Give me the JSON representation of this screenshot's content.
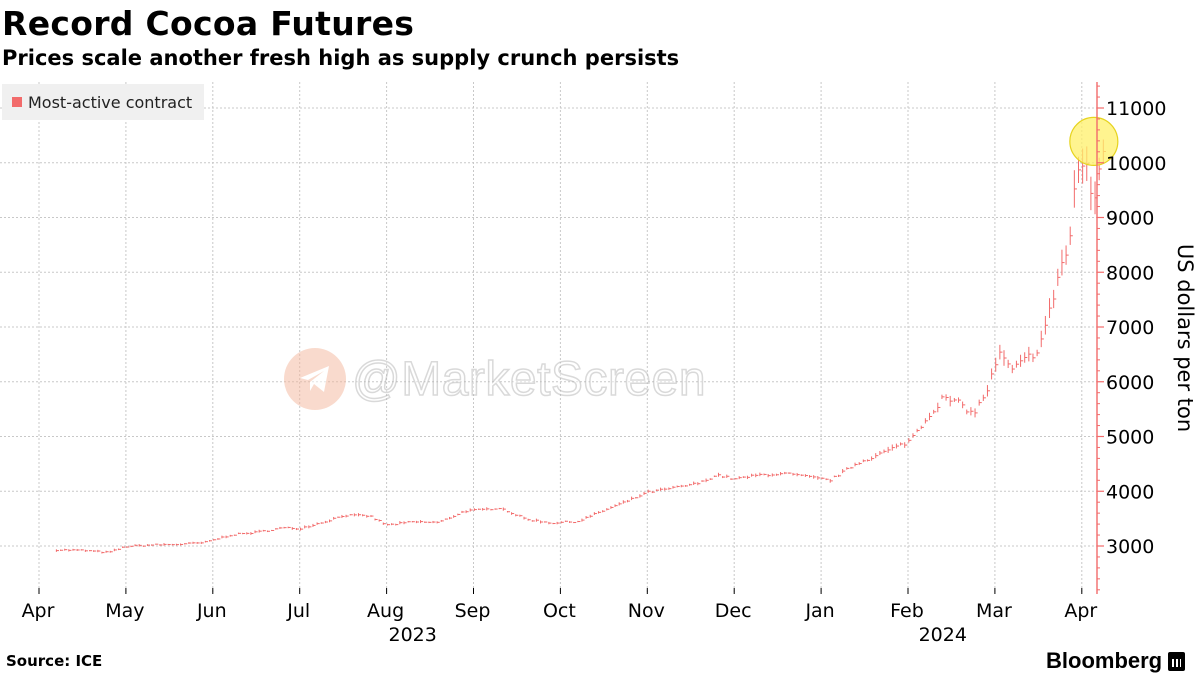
{
  "colors": {
    "series": "#f26b6b",
    "highlight": "#fff06a",
    "grid": "#c8c8c8"
  },
  "header": {
    "title": "Record Cocoa Futures",
    "subtitle": "Prices scale another fresh high as supply crunch persists"
  },
  "legend": {
    "label": "Most-active contract"
  },
  "watermark": {
    "text": "@MarketScreen",
    "icon": "telegram-plane-icon"
  },
  "footer": {
    "source": "Source: ICE",
    "brand": "Bloomberg",
    "brand_icon": "bloomberg-chart-icon"
  },
  "chart_data": {
    "type": "line",
    "style": "daily high-low bars",
    "title": "Record Cocoa Futures",
    "subtitle": "Prices scale another fresh high as supply crunch persists",
    "ylabel": "US dollars per ton",
    "xlabel": "",
    "ylim": [
      2000,
      11500
    ],
    "yticks": [
      3000,
      4000,
      5000,
      6000,
      7000,
      8000,
      9000,
      10000,
      11000
    ],
    "y_axis_side": "right",
    "grid": true,
    "legend_position": "top-left",
    "x_start_month": 3.2,
    "x_end_month": 15.25,
    "month_ticks": [
      {
        "label": "Apr",
        "month": 3
      },
      {
        "label": "May",
        "month": 4
      },
      {
        "label": "Jun",
        "month": 5
      },
      {
        "label": "Jul",
        "month": 6
      },
      {
        "label": "Aug",
        "month": 7
      },
      {
        "label": "Sep",
        "month": 8
      },
      {
        "label": "Oct",
        "month": 9
      },
      {
        "label": "Nov",
        "month": 10
      },
      {
        "label": "Dec",
        "month": 11
      },
      {
        "label": "Jan",
        "month": 12
      },
      {
        "label": "Feb",
        "month": 13
      },
      {
        "label": "Mar",
        "month": 14
      },
      {
        "label": "Apr",
        "month": 15
      }
    ],
    "year_labels": [
      {
        "label": "2023",
        "month": 7.3
      },
      {
        "label": "2024",
        "month": 13.4
      }
    ],
    "series": [
      {
        "name": "Most-active contract",
        "month": [
          3.2,
          3.5,
          3.8,
          4.0,
          4.3,
          4.6,
          4.9,
          5.2,
          5.5,
          5.8,
          6.0,
          6.3,
          6.5,
          6.8,
          7.0,
          7.3,
          7.6,
          7.9,
          8.1,
          8.3,
          8.6,
          8.9,
          9.2,
          9.5,
          9.8,
          10.0,
          10.3,
          10.6,
          10.8,
          11.0,
          11.3,
          11.6,
          11.9,
          12.1,
          12.4,
          12.7,
          13.0,
          13.2,
          13.4,
          13.6,
          13.75,
          13.9,
          14.05,
          14.2,
          14.35,
          14.5,
          14.62,
          14.75,
          14.85,
          14.95,
          15.05,
          15.15,
          15.25
        ],
        "price": [
          2930,
          2920,
          2880,
          2990,
          3020,
          3030,
          3060,
          3200,
          3250,
          3330,
          3320,
          3450,
          3560,
          3550,
          3380,
          3440,
          3430,
          3640,
          3660,
          3700,
          3490,
          3420,
          3450,
          3650,
          3840,
          3980,
          4060,
          4150,
          4300,
          4220,
          4300,
          4320,
          4250,
          4200,
          4500,
          4700,
          4900,
          5300,
          5700,
          5600,
          5400,
          5800,
          6500,
          6200,
          6400,
          6600,
          7200,
          8100,
          8400,
          10000,
          9800,
          9300,
          10400
        ]
      }
    ],
    "annotations": [
      {
        "type": "highlight-circle",
        "month": 15.15,
        "value": 10390
      }
    ]
  }
}
